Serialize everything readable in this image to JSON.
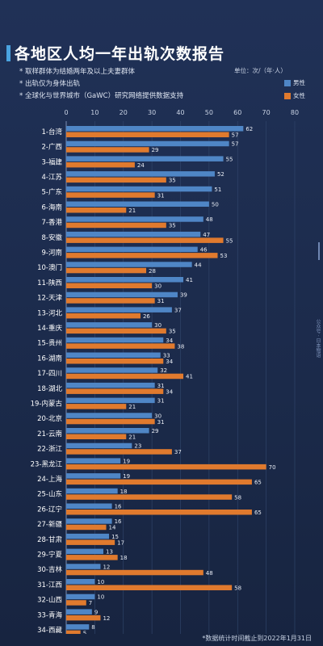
{
  "header": {
    "title": "各地区人均一年出轨次数报告",
    "notes": [
      "* 取样群体为结婚两年及以上夫妻群体",
      "* 出轨仅为身体出轨",
      "* 全球化与世界城市（GaWC）研究网络提供数据支持"
    ],
    "unit": "单位：次/（年·人）"
  },
  "legend": {
    "male_label": "男性",
    "female_label": "女性"
  },
  "colors": {
    "male": "#4f86c6",
    "female": "#e07a2e",
    "background": "#1b2a4a",
    "grid": "#33486e"
  },
  "footer": {
    "source": "*数据统计时间截止到2022年1月31日",
    "watermark": "公众号 · 日本物语"
  },
  "chart_data": {
    "type": "bar",
    "orientation": "horizontal",
    "xlim": [
      0,
      80
    ],
    "xticks": [
      0,
      10,
      20,
      30,
      40,
      50,
      60,
      70,
      80
    ],
    "grid": true,
    "legend_position": "top-right",
    "categories": [
      "1-台湾",
      "2-广西",
      "3-福建",
      "4-江苏",
      "5-广东",
      "6-海南",
      "7-香港",
      "8-安徽",
      "9-河南",
      "10-澳门",
      "11-陕西",
      "12-天津",
      "13-河北",
      "14-重庆",
      "15-贵州",
      "16-湖南",
      "17-四川",
      "18-湖北",
      "19-内蒙古",
      "20-北京",
      "21-云南",
      "22-浙江",
      "23-黑龙江",
      "24-上海",
      "25-山东",
      "26-辽宁",
      "27-新疆",
      "28-甘肃",
      "29-宁夏",
      "30-吉林",
      "31-江西",
      "32-山西",
      "33-青海",
      "34-西藏"
    ],
    "series": [
      {
        "name": "男性",
        "values": [
          62,
          57,
          55,
          52,
          51,
          50,
          48,
          47,
          46,
          44,
          41,
          39,
          37,
          30,
          34,
          33,
          32,
          31,
          31,
          30,
          29,
          23,
          19,
          19,
          18,
          16,
          16,
          15,
          13,
          12,
          10,
          10,
          9,
          8
        ]
      },
      {
        "name": "女性",
        "values": [
          57,
          29,
          24,
          35,
          31,
          21,
          35,
          55,
          53,
          28,
          30,
          31,
          26,
          35,
          38,
          34,
          41,
          34,
          21,
          31,
          21,
          37,
          70,
          65,
          58,
          65,
          14,
          17,
          18,
          48,
          58,
          7,
          12,
          5
        ]
      }
    ]
  }
}
